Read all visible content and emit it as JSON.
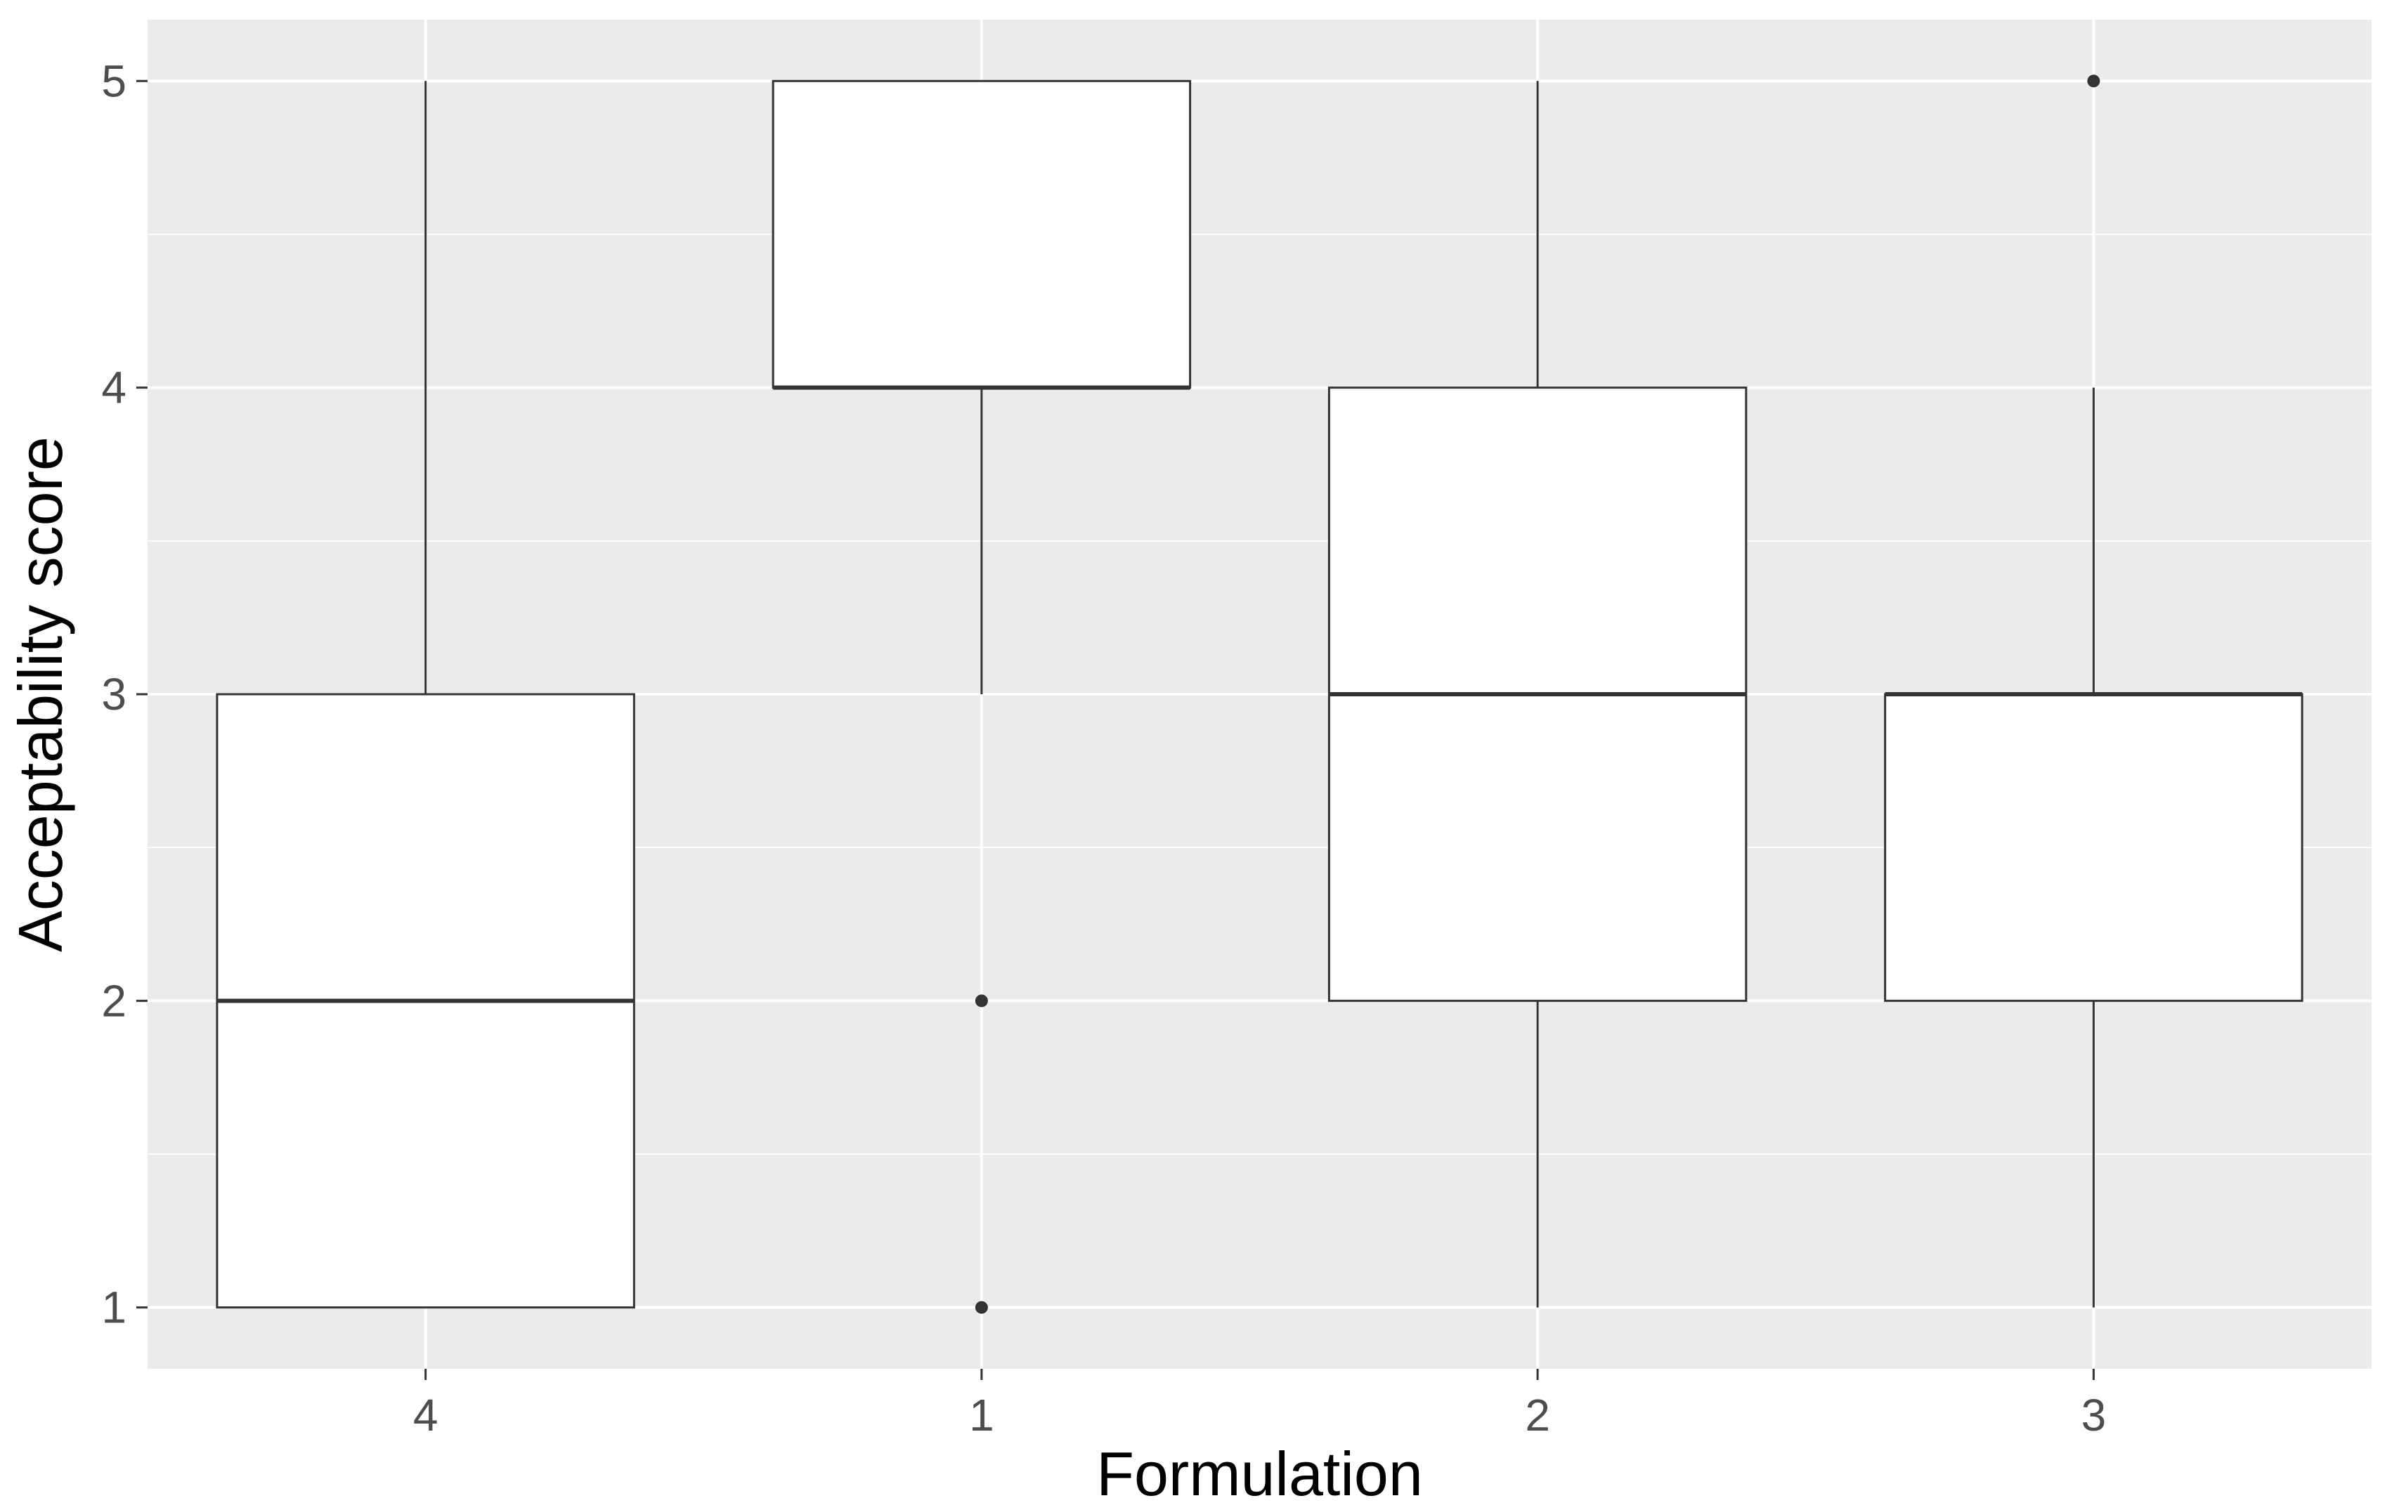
{
  "chart_data": {
    "type": "boxplot",
    "title": "",
    "xlabel": "Formulation",
    "ylabel": "Acceptability score",
    "categories": [
      "4",
      "1",
      "2",
      "3"
    ],
    "ylim": [
      0.8,
      5.2
    ],
    "yticks": [
      1,
      2,
      3,
      4,
      5
    ],
    "grid": true,
    "legend": "none",
    "colors": {
      "panel": "#ebebeb",
      "grid": "#ffffff",
      "box_fill": "#ffffff",
      "box_line": "#333333"
    },
    "boxes": [
      {
        "category": "4",
        "whisker_low": 1,
        "q1": 1,
        "median": 2,
        "q3": 3,
        "whisker_high": 5,
        "outliers": []
      },
      {
        "category": "1",
        "whisker_low": 3,
        "q1": 4,
        "median": 4,
        "q3": 5,
        "whisker_high": 5,
        "outliers": [
          1,
          2
        ]
      },
      {
        "category": "2",
        "whisker_low": 1,
        "q1": 2,
        "median": 3,
        "q3": 4,
        "whisker_high": 5,
        "outliers": []
      },
      {
        "category": "3",
        "whisker_low": 1,
        "q1": 2,
        "median": 3,
        "q3": 3,
        "whisker_high": 4,
        "outliers": [
          5
        ]
      }
    ]
  }
}
